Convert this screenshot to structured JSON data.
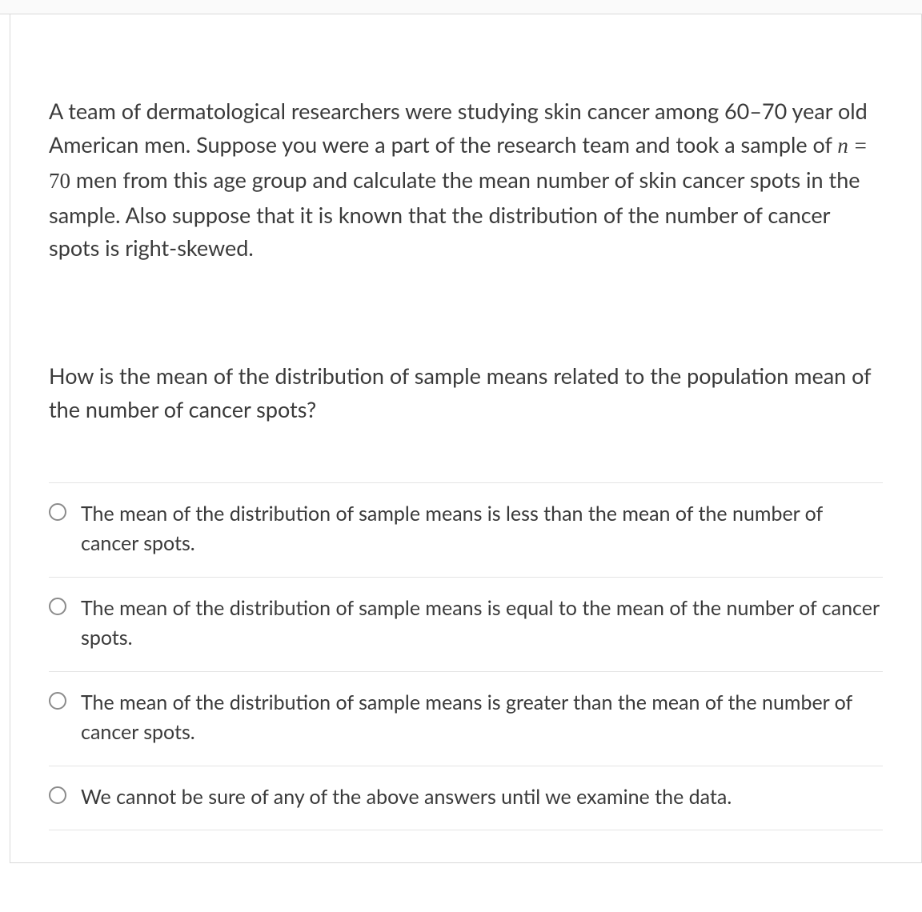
{
  "question": {
    "context_pre": "A team of dermatological researchers were studying skin cancer among 60–70 year old American men. Suppose you were a part of the research team and took a sample of ",
    "math_var": "n",
    "math_eq": " = ",
    "math_val": "70",
    "context_post": " men from this age group and calculate the mean number of skin cancer spots in the sample. Also suppose that it is known that the distribution of the number of cancer spots is right-skewed.",
    "prompt": "How is the mean of the distribution of sample means related to the population mean of the number of cancer spots?"
  },
  "options": [
    {
      "text": "The mean of the distribution of sample means is less than the mean of the number of cancer spots."
    },
    {
      "text": "The mean of the distribution of sample means is equal to the mean of the number of cancer spots."
    },
    {
      "text": "The mean of the distribution of sample means is greater than the mean of the number of cancer spots."
    },
    {
      "text": "We cannot be sure of any of the above answers until we examine the data."
    }
  ],
  "colors": {
    "text": "#3a3a3a",
    "border": "#d9d9d9",
    "option_divider": "#e3e3e3",
    "radio_border": "#8b8b8b",
    "background": "#ffffff"
  }
}
